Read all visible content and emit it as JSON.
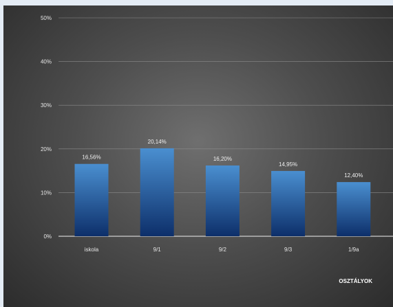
{
  "chart_data": {
    "type": "bar",
    "categories": [
      "iskola",
      "9/1",
      "9/2",
      "9/3",
      "1/9a"
    ],
    "values": [
      16.56,
      20.14,
      16.2,
      14.95,
      12.4
    ],
    "data_labels": [
      "16,56%",
      "20,14%",
      "16,20%",
      "14,95%",
      "12,40%"
    ],
    "yticks": [
      "0%",
      "10%",
      "20%",
      "30%",
      "40%",
      "50%"
    ],
    "ylim": [
      0,
      50
    ],
    "xlabel": "OSZTÁLYOK",
    "ylabel": "",
    "title": "",
    "grid": true,
    "colors": {
      "bar_top": "#4a8fd0",
      "bar_bottom": "#0d2f6a",
      "grid": "#8c8c8c",
      "axis": "#cfcfcf"
    }
  }
}
